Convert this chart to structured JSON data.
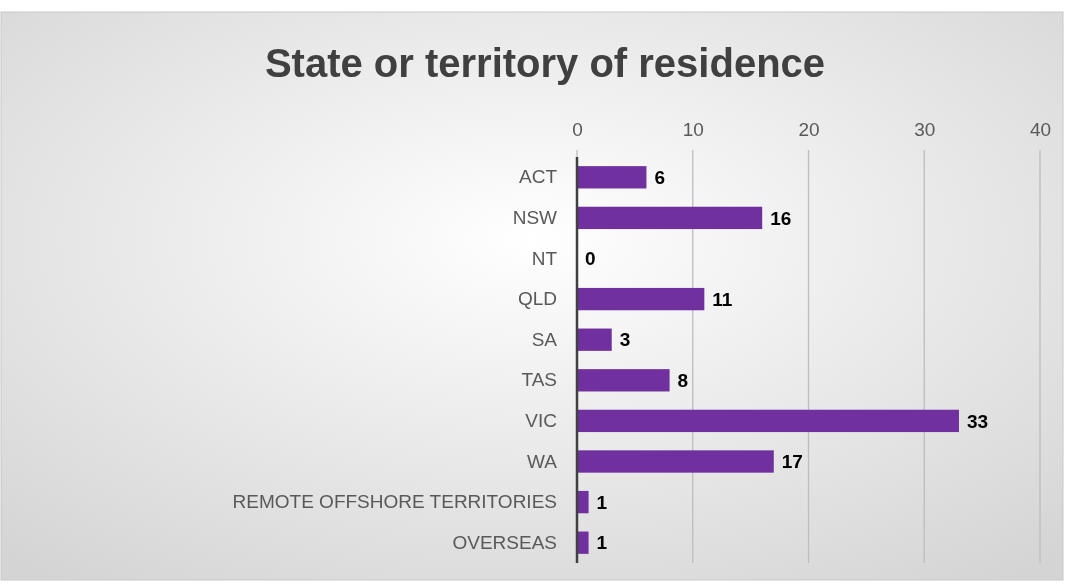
{
  "chart_data": {
    "type": "bar",
    "orientation": "horizontal",
    "title": "State or territory of residence",
    "categories": [
      "ACT",
      "NSW",
      "NT",
      "QLD",
      "SA",
      "TAS",
      "VIC",
      "WA",
      "REMOTE OFFSHORE TERRITORIES",
      "OVERSEAS"
    ],
    "values": [
      6,
      16,
      0,
      11,
      3,
      8,
      33,
      17,
      1,
      1
    ],
    "color": "#7030a0",
    "xlim": [
      0,
      40
    ],
    "xticks": [
      0,
      10,
      20,
      30,
      40
    ],
    "grid": "x",
    "data_labels": true
  }
}
